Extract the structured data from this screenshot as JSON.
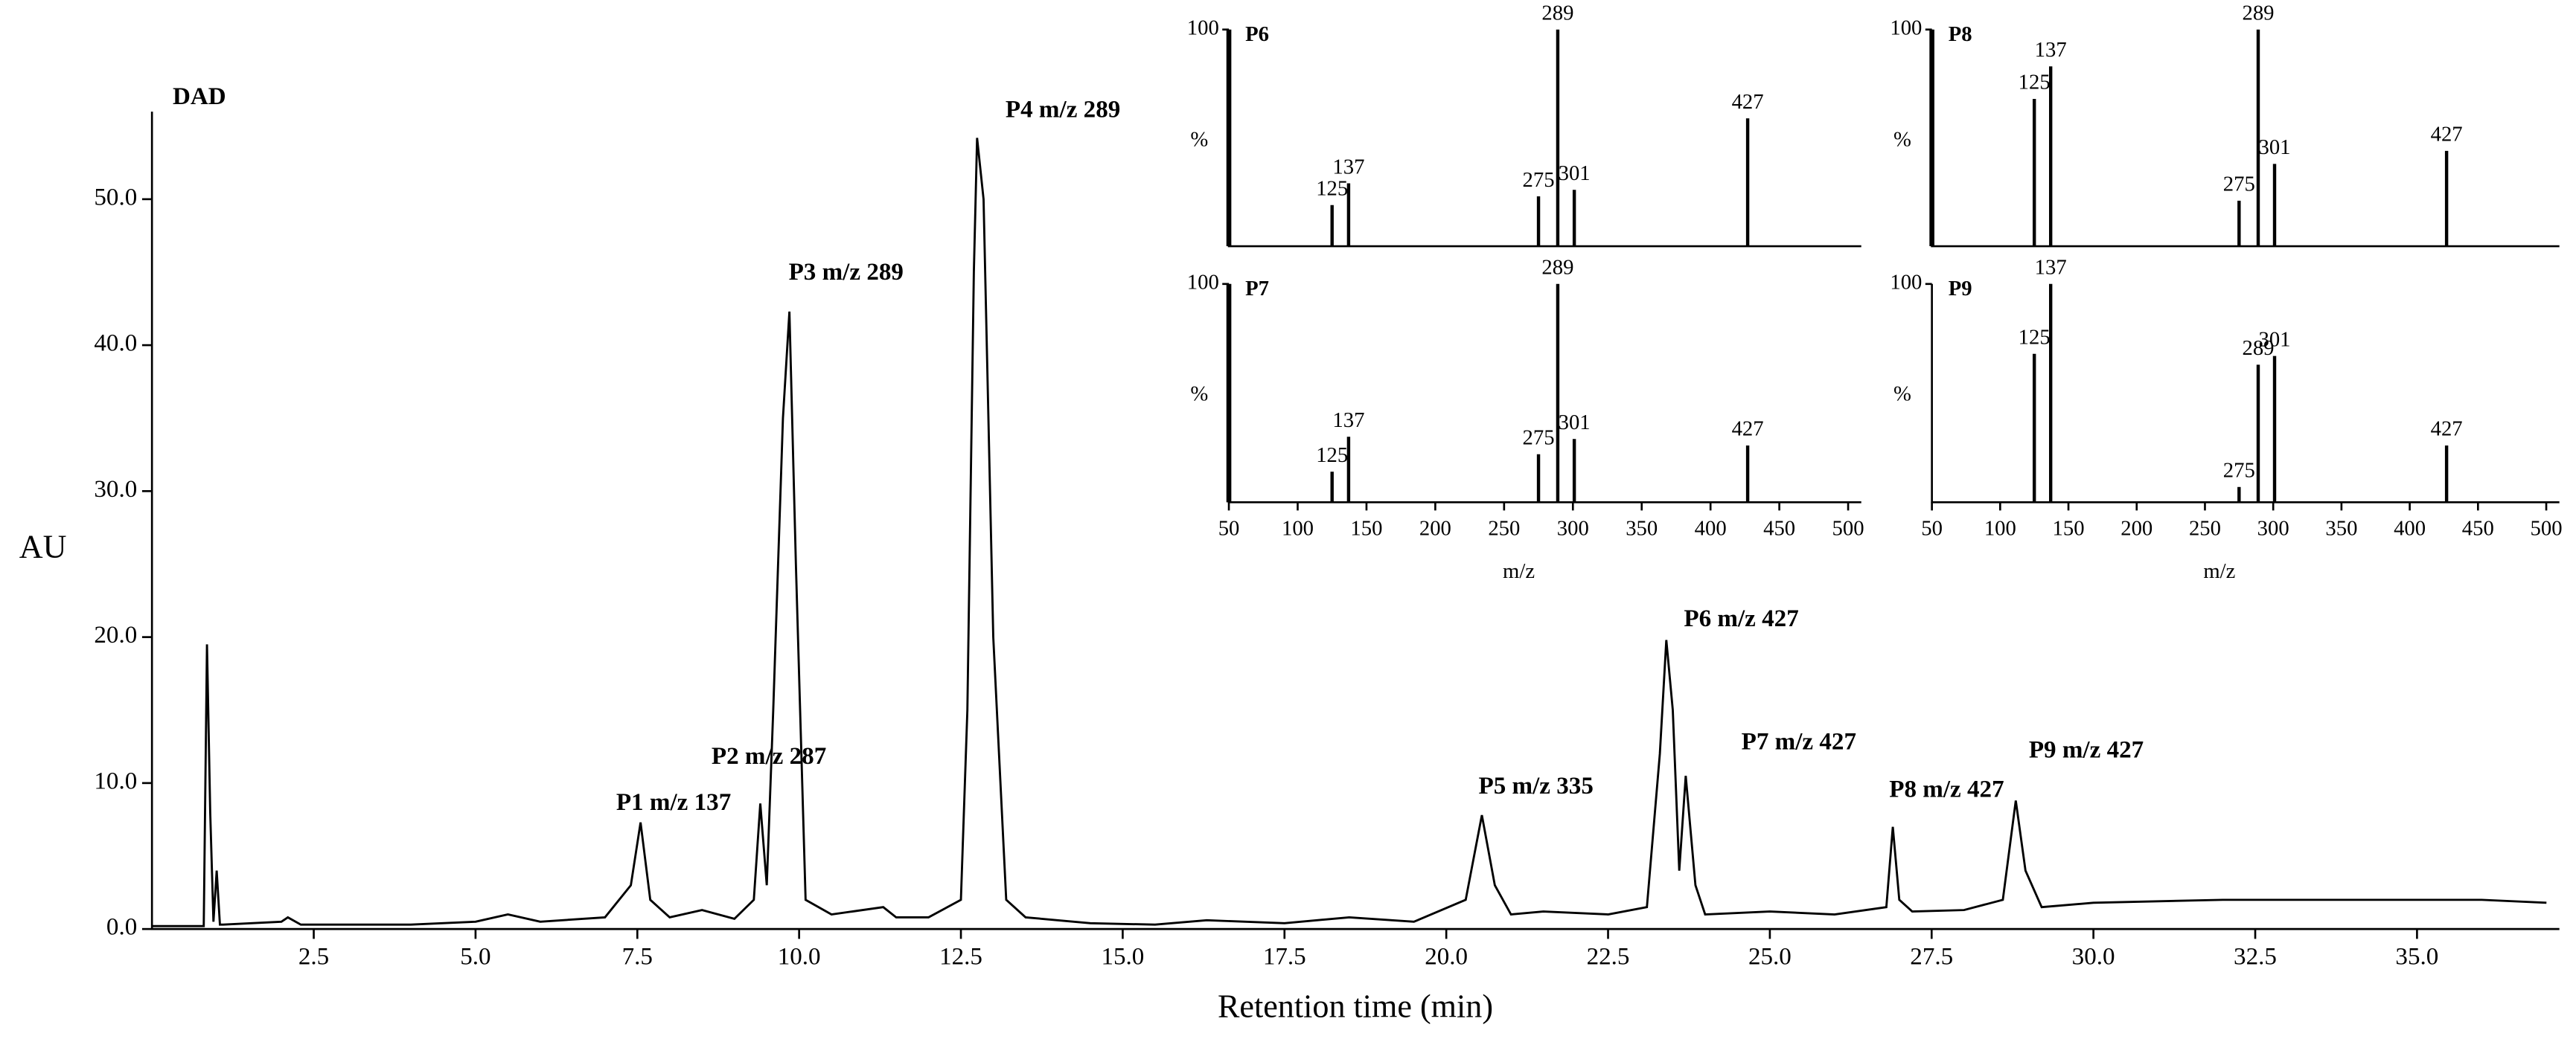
{
  "chart_data": [
    {
      "type": "line",
      "xlabel": "Retention time (min)",
      "ylabel": "AU",
      "annotations": [
        "DAD",
        "P1 m/z 137",
        "P2 m/z 287",
        "P3 m/z 289",
        "P4 m/z 289",
        "P5 m/z 335",
        "P6 m/z 427",
        "P7 m/z 427",
        "P8 m/z 427",
        "P9 m/z 427"
      ],
      "x": [
        0,
        0.8,
        0.85,
        0.9,
        0.95,
        1.0,
        1.05,
        1.1,
        2.0,
        2.1,
        2.3,
        4.0,
        5.0,
        5.5,
        6.0,
        7.0,
        7.4,
        7.55,
        7.7,
        8.0,
        8.5,
        9.0,
        9.3,
        9.4,
        9.5,
        9.6,
        9.75,
        9.85,
        9.95,
        10.1,
        10.5,
        11.3,
        11.5,
        12.0,
        12.5,
        12.6,
        12.7,
        12.75,
        12.85,
        13.0,
        13.2,
        13.5,
        14.5,
        15.5,
        16.3,
        17.5,
        18.5,
        19.5,
        20.3,
        20.55,
        20.75,
        21.0,
        21.5,
        22.5,
        23.1,
        23.3,
        23.4,
        23.5,
        23.6,
        23.7,
        23.85,
        24.0,
        25.0,
        26.0,
        26.8,
        26.9,
        27.0,
        27.2,
        28.0,
        28.6,
        28.8,
        28.95,
        29.2,
        30.0,
        32.0,
        34.0,
        36.0,
        37.0
      ],
      "series": [
        {
          "color": "#000000",
          "values": [
            0.2,
            0.2,
            19.5,
            8,
            0.5,
            4,
            0.3,
            0.3,
            0.5,
            0.8,
            0.3,
            0.3,
            0.5,
            1.0,
            0.5,
            0.8,
            3,
            7.3,
            2,
            0.8,
            1.3,
            0.7,
            2,
            8.6,
            3,
            15,
            35,
            42.3,
            25,
            2,
            1,
            1.5,
            0.8,
            0.8,
            2,
            15,
            45,
            54.2,
            50,
            20,
            2,
            0.8,
            0.4,
            0.3,
            0.6,
            0.4,
            0.8,
            0.5,
            2,
            7.8,
            3,
            1,
            1.2,
            1,
            1.5,
            12,
            19.8,
            15,
            4,
            10.5,
            3,
            1,
            1.2,
            1,
            1.5,
            7,
            2,
            1.2,
            1.3,
            2,
            8.8,
            4,
            1.5,
            1.8,
            2.0,
            2.0,
            2.0,
            1.8
          ]
        }
      ],
      "xlim": [
        0,
        37.2
      ],
      "xticks": [
        2.5,
        {
          "value": 5,
          "label": "5.0"
        },
        7.5,
        {
          "value": 10,
          "label": "10.0"
        },
        12.5,
        {
          "value": 15,
          "label": "15.0"
        },
        17.5,
        {
          "value": 20,
          "label": "20.0"
        },
        22.5,
        {
          "value": 25,
          "label": "25.0"
        },
        27.5,
        {
          "value": 30,
          "label": "30.0"
        },
        32.5,
        {
          "value": 35,
          "label": "35.0"
        }
      ],
      "ylim": [
        0,
        56
      ],
      "yticks": [
        {
          "value": 0,
          "label": "0.0"
        },
        {
          "value": 10,
          "label": "10.0"
        },
        {
          "value": 20,
          "label": "20.0"
        },
        {
          "value": 30,
          "label": "30.0"
        },
        {
          "value": 40,
          "label": "40.0"
        },
        {
          "value": 50,
          "label": "50.0"
        }
      ]
    },
    {
      "type": "bar",
      "title": "P6",
      "ylabel": "%",
      "color": "#000000",
      "x": [
        50,
        125,
        137,
        275,
        289,
        301,
        427
      ],
      "values": [
        100,
        19,
        29,
        23,
        100,
        26,
        59
      ],
      "xlim": [
        50,
        500
      ],
      "ylim": [
        0,
        100
      ],
      "yticks": [
        100
      ]
    },
    {
      "type": "bar",
      "title": "P8",
      "ylabel": "%",
      "color": "#000000",
      "x": [
        50,
        125,
        137,
        275,
        289,
        301,
        427
      ],
      "values": [
        100,
        68,
        83,
        21,
        100,
        38,
        44
      ],
      "xlim": [
        50,
        500
      ],
      "ylim": [
        0,
        100
      ],
      "yticks": [
        100
      ]
    },
    {
      "type": "bar",
      "title": "P7",
      "ylabel": "%",
      "xlabel": "m/z",
      "color": "#000000",
      "x": [
        50,
        125,
        137,
        275,
        289,
        301,
        427
      ],
      "values": [
        100,
        14,
        30,
        22,
        100,
        29,
        26
      ],
      "xlim": [
        50,
        500
      ],
      "ylim": [
        0,
        100
      ],
      "yticks": [
        100
      ],
      "xticks": [
        50,
        100,
        150,
        200,
        250,
        300,
        350,
        400,
        450,
        500
      ]
    },
    {
      "type": "bar",
      "title": "P9",
      "ylabel": "%",
      "xlabel": "m/z",
      "color": "#000000",
      "x": [
        125,
        137,
        275,
        289,
        301,
        427
      ],
      "values": [
        68,
        100,
        7,
        63,
        67,
        26
      ],
      "xlim": [
        50,
        500
      ],
      "ylim": [
        0,
        100
      ],
      "yticks": [
        100
      ],
      "xticks": [
        50,
        100,
        150,
        200,
        250,
        300,
        350,
        400,
        450,
        500
      ]
    }
  ]
}
